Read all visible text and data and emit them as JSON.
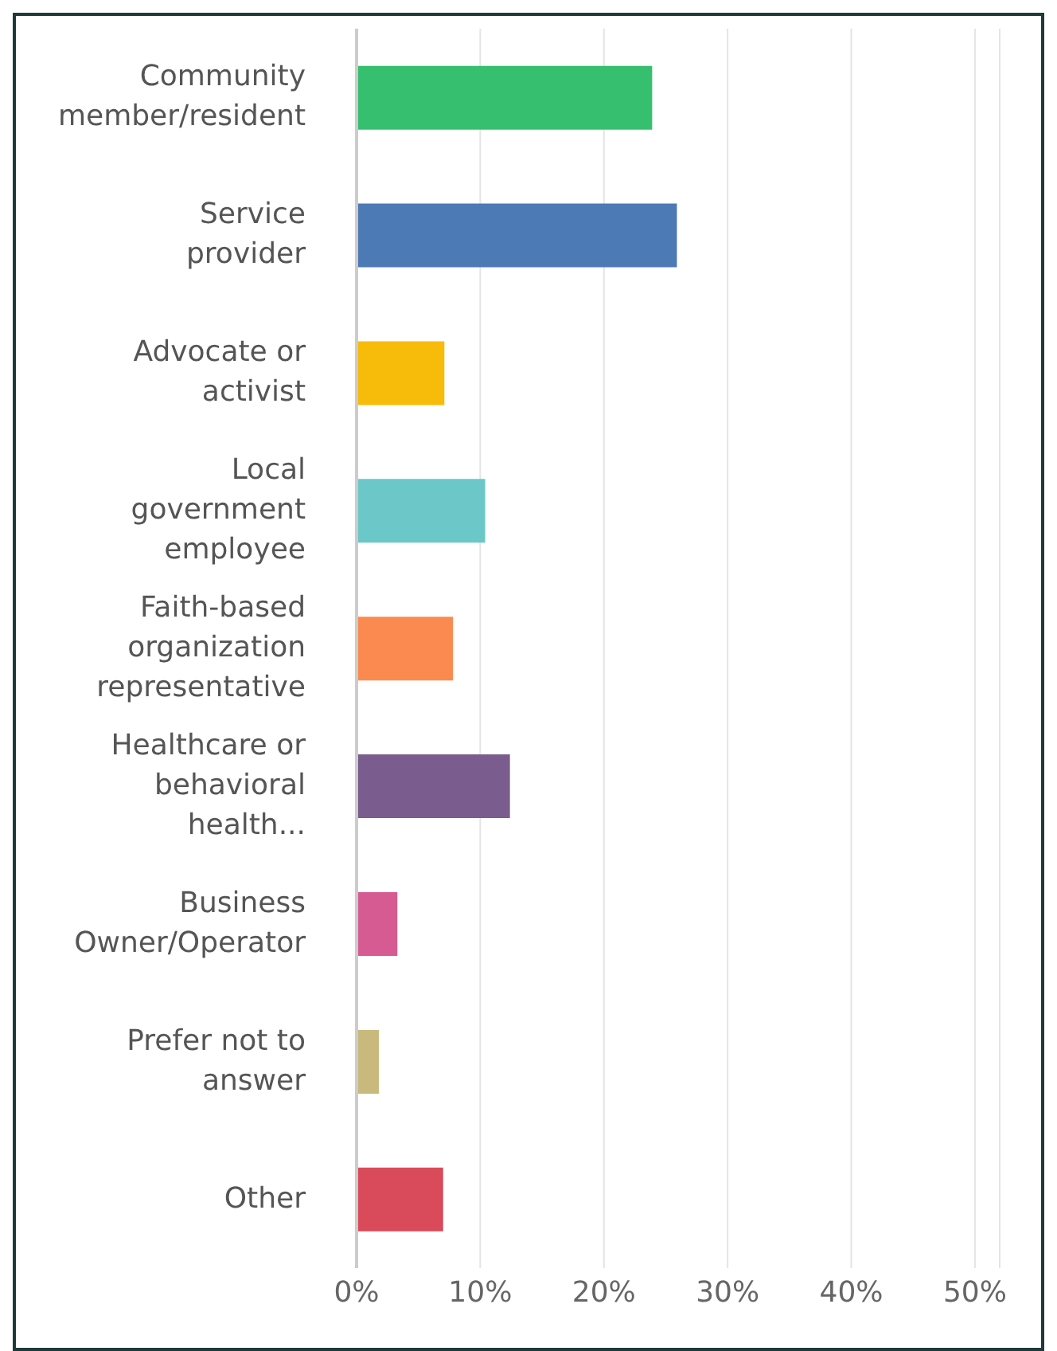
{
  "chart_data": {
    "type": "bar",
    "orientation": "horizontal",
    "categories": [
      "Community member/resident",
      "Service provider",
      "Advocate or activist",
      "Local government employee",
      "Faith-based organization representative",
      "Healthcare or behavioral health...",
      "Business Owner/Operator",
      "Prefer not to answer",
      "Other"
    ],
    "values": [
      23.9,
      25.9,
      7.1,
      10.4,
      7.8,
      12.4,
      3.3,
      1.8,
      7.0
    ],
    "colors": [
      "#36bf6f",
      "#4c7ab4",
      "#f7bb0a",
      "#6cc7c9",
      "#fb8a50",
      "#7a5c8e",
      "#d65b92",
      "#c9b97c",
      "#d94b5a"
    ],
    "xlim": [
      0,
      52
    ],
    "xticks": [
      {
        "value": 0,
        "label": "0%"
      },
      {
        "value": 10,
        "label": "10%"
      },
      {
        "value": 20,
        "label": "20%"
      },
      {
        "value": 30,
        "label": "30%"
      },
      {
        "value": 40,
        "label": "40%"
      },
      {
        "value": 50,
        "label": "50%"
      }
    ],
    "grid": "x"
  }
}
